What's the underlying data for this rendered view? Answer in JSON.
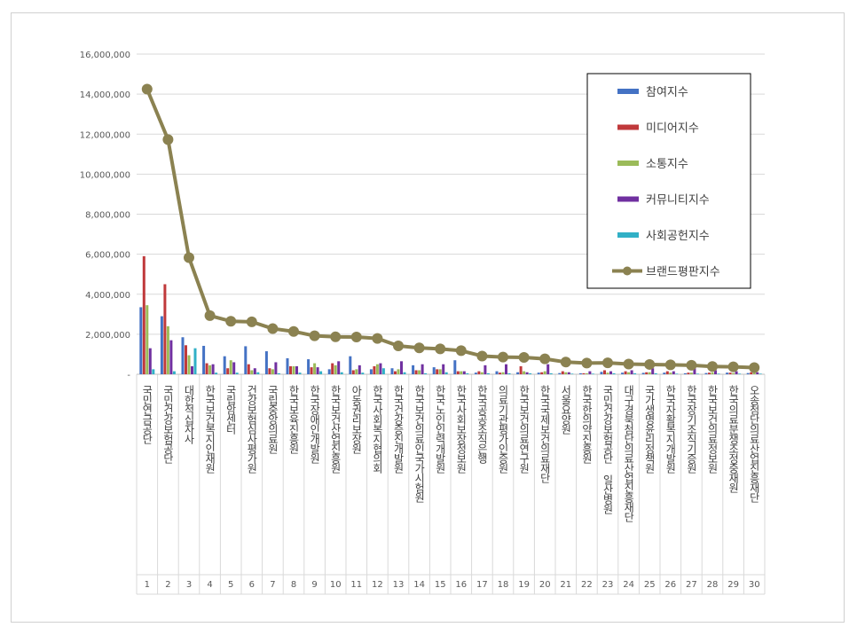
{
  "chart_data": {
    "type": "bar",
    "title": "",
    "xlabel": "",
    "ylabel": "",
    "ylim": [
      0,
      16000000
    ],
    "y_ticks": [
      "16,000,000",
      "14,000,000",
      "12,000,000",
      "10,000,000",
      "8,000,000",
      "6,000,000",
      "4,000,000",
      "2,000,000",
      "-"
    ],
    "ranks": [
      "1",
      "2",
      "3",
      "4",
      "5",
      "6",
      "7",
      "8",
      "9",
      "10",
      "11",
      "12",
      "13",
      "14",
      "15",
      "16",
      "17",
      "18",
      "19",
      "20",
      "21",
      "22",
      "23",
      "24",
      "25",
      "26",
      "27",
      "28",
      "29",
      "30"
    ],
    "categories": [
      "국민연금공단",
      "국민건강보험공단",
      "대한적십자사",
      "한국보건복지인재원",
      "국립암센터",
      "건강보험심사평가원",
      "국립중앙의료원",
      "한국보육진흥원",
      "한국장애인개발원",
      "한국보건산업진흥원",
      "아동권리보장원",
      "한국사회복지협의회",
      "한국건강증진개발원",
      "한국보건의료인국가시험원",
      "한국노인인력개발원",
      "한국사회보장정보원",
      "한국공공조직은행",
      "의료기관평가인증원",
      "한국보건의료연구원",
      "한국국제보건의료재단",
      "서울요양원",
      "한국한의약진흥원",
      "국민건강보험공단 일산병원",
      "대구경북첨단의료산업진흥재단",
      "국가생명윤리정책원",
      "한국자활복지개발원",
      "한국장기조직기증원",
      "한국보건의료정보원",
      "한국의료분쟁조정중재원",
      "오송첨단의료산업진흥재단"
    ],
    "legend_position": "top-right",
    "grid": true,
    "series": [
      {
        "name": "참여지수",
        "color": "#4472c4",
        "kind": "bar",
        "values": [
          3350000,
          2900000,
          1850000,
          1420000,
          900000,
          1400000,
          1150000,
          800000,
          750000,
          250000,
          900000,
          250000,
          300000,
          450000,
          350000,
          700000,
          80000,
          150000,
          100000,
          80000,
          60000,
          50000,
          120000,
          80000,
          70000,
          80000,
          50000,
          60000,
          80000,
          60000
        ]
      },
      {
        "name": "미디어지수",
        "color": "#c0393b",
        "kind": "bar",
        "values": [
          5900000,
          4500000,
          1450000,
          550000,
          300000,
          500000,
          300000,
          400000,
          350000,
          550000,
          200000,
          400000,
          150000,
          200000,
          250000,
          150000,
          150000,
          80000,
          400000,
          100000,
          150000,
          50000,
          200000,
          150000,
          100000,
          150000,
          80000,
          80000,
          80000,
          100000
        ]
      },
      {
        "name": "소통지수",
        "color": "#9bbb59",
        "kind": "bar",
        "values": [
          3450000,
          2400000,
          950000,
          450000,
          700000,
          200000,
          250000,
          400000,
          550000,
          450000,
          250000,
          500000,
          250000,
          200000,
          250000,
          150000,
          100000,
          100000,
          150000,
          150000,
          100000,
          50000,
          80000,
          100000,
          100000,
          80000,
          80000,
          100000,
          60000,
          80000
        ]
      },
      {
        "name": "커뮤니티지수",
        "color": "#7030a0",
        "kind": "bar",
        "values": [
          1300000,
          1700000,
          400000,
          500000,
          600000,
          300000,
          600000,
          400000,
          350000,
          650000,
          450000,
          550000,
          650000,
          500000,
          500000,
          150000,
          450000,
          500000,
          100000,
          500000,
          100000,
          150000,
          150000,
          200000,
          300000,
          150000,
          300000,
          200000,
          150000,
          100000
        ]
      },
      {
        "name": "사회공헌지수",
        "color": "#31b0c6",
        "kind": "bar",
        "values": [
          250000,
          150000,
          1300000,
          80000,
          80000,
          100000,
          50000,
          80000,
          150000,
          100000,
          80000,
          300000,
          100000,
          50000,
          100000,
          50000,
          50000,
          50000,
          50000,
          50000,
          30000,
          30000,
          50000,
          50000,
          50000,
          30000,
          30000,
          30000,
          30000,
          30000
        ]
      },
      {
        "name": "브랜드평판지수",
        "color": "#8b8251",
        "kind": "line",
        "values": [
          14250000,
          11730000,
          5830000,
          2930000,
          2650000,
          2620000,
          2280000,
          2140000,
          1920000,
          1870000,
          1860000,
          1790000,
          1420000,
          1320000,
          1270000,
          1180000,
          910000,
          860000,
          840000,
          770000,
          610000,
          560000,
          570000,
          510000,
          490000,
          470000,
          450000,
          390000,
          370000,
          330000
        ]
      }
    ]
  }
}
